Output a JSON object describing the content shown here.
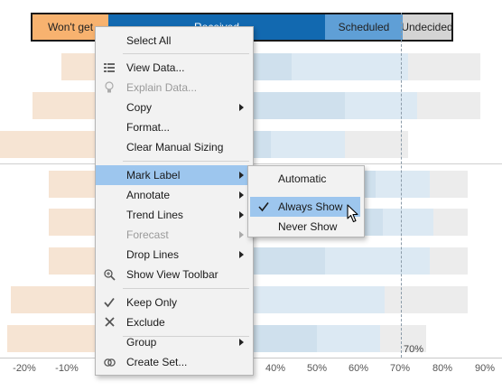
{
  "legend": {
    "wont_get": "Won't get",
    "received": "Received",
    "scheduled": "Scheduled",
    "undecided": "Undecided"
  },
  "colors": {
    "wont_get": "#f7b26f",
    "received": "#1269b0",
    "scheduled": "#5f9fd6",
    "undecided": "#d4d4d4",
    "bar_orange": "#f6e4d3",
    "bar_blue_dark": "#cfe0ed",
    "bar_blue_light": "#dce9f3",
    "bar_gray": "#ececec"
  },
  "axis": {
    "ticks": [
      "-20%",
      "-10%",
      "40%",
      "50%",
      "60%",
      "70%",
      "80%",
      "90%"
    ],
    "reference_label": "70%"
  },
  "context_menu": {
    "items": [
      {
        "label": "Select All"
      },
      {
        "label": "View Data...",
        "icon": "table-icon"
      },
      {
        "label": "Explain Data...",
        "icon": "lightbulb-icon",
        "disabled": true
      },
      {
        "label": "Copy",
        "submenu": true
      },
      {
        "label": "Format..."
      },
      {
        "label": "Clear Manual Sizing"
      },
      {
        "label": "Mark Label",
        "submenu": true,
        "active": true
      },
      {
        "label": "Annotate",
        "submenu": true
      },
      {
        "label": "Trend Lines",
        "submenu": true
      },
      {
        "label": "Forecast",
        "submenu": true,
        "disabled": true
      },
      {
        "label": "Drop Lines",
        "submenu": true
      },
      {
        "label": "Show View Toolbar",
        "icon": "zoom-icon"
      },
      {
        "label": "Keep Only",
        "icon": "checkmark-icon"
      },
      {
        "label": "Exclude",
        "icon": "x-icon"
      },
      {
        "label": "Group",
        "submenu": true
      },
      {
        "label": "Create Set...",
        "icon": "set-icon"
      }
    ]
  },
  "mark_label_submenu": {
    "items": [
      {
        "label": "Automatic"
      },
      {
        "label": "Always Show",
        "checked": true,
        "hover": true
      },
      {
        "label": "Never Show"
      }
    ]
  }
}
